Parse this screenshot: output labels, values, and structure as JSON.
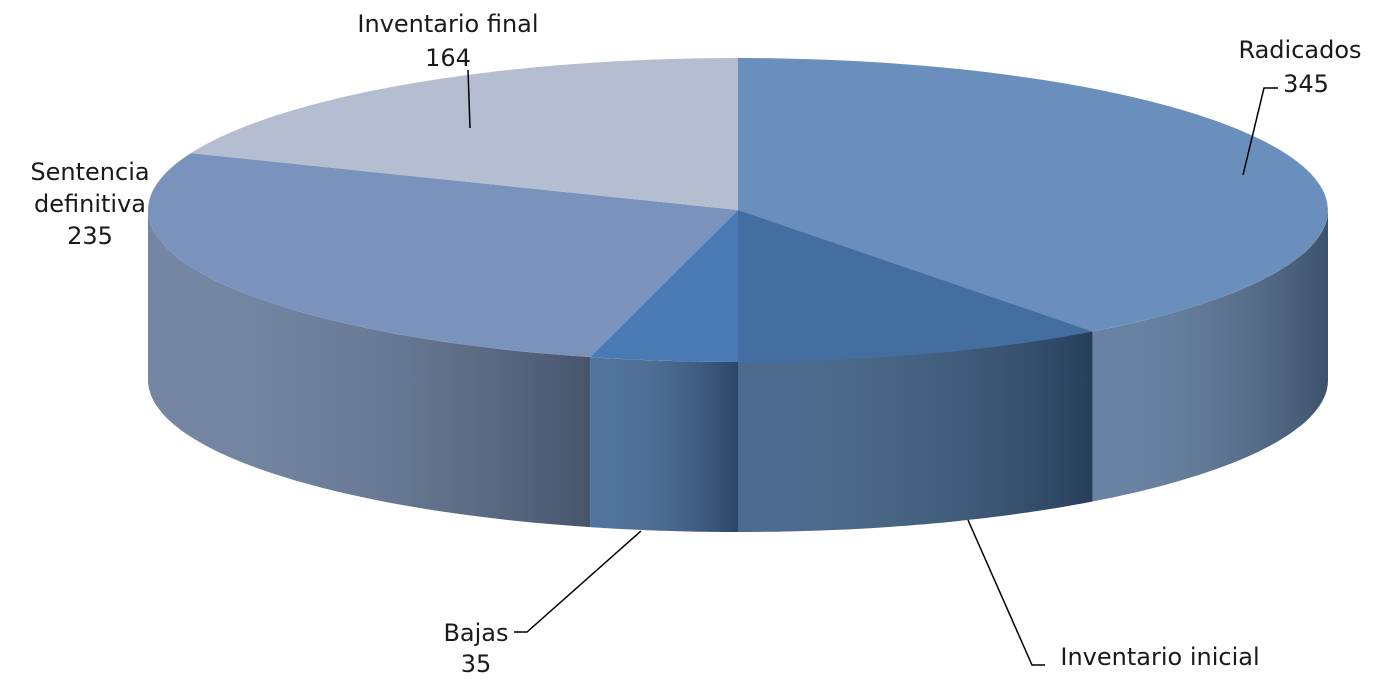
{
  "chart_data": {
    "type": "pie",
    "style": "3d",
    "title": "",
    "slices": [
      {
        "label": "Radicados",
        "value": 345,
        "color": "#6a8fbc"
      },
      {
        "label": "Inventario inicial",
        "value": 89,
        "color": "#436e9f"
      },
      {
        "label": "Bajas",
        "value": 35,
        "color": "#4a7ab3"
      },
      {
        "label": "Sentencia definitiva",
        "value": 235,
        "color": "#7a93bc"
      },
      {
        "label": "Inventario final",
        "value": 164,
        "color": "#b5bed1"
      }
    ],
    "data_labels": {
      "radicados": {
        "name": "Radicados",
        "value": "345"
      },
      "inventario_inicial": {
        "name": "Inventario inicial",
        "value": "89"
      },
      "bajas": {
        "name": "Bajas",
        "value": "35"
      },
      "sentencia_definitiva": {
        "name_line1": "Sentencia",
        "name_line2": "definitiva",
        "value": "235"
      },
      "inventario_final": {
        "name": "Inventario final",
        "value": "164"
      }
    },
    "legend": "none"
  }
}
